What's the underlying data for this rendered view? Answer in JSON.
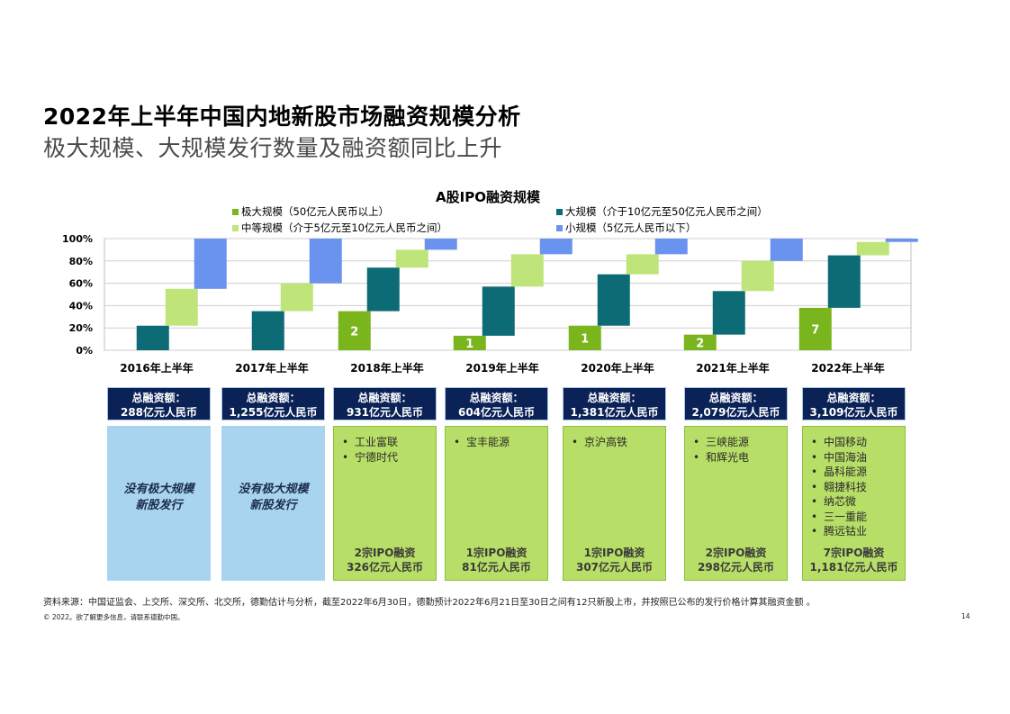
{
  "title": "2022年上半年中国内地新股市场融资规模分析",
  "subtitle": "极大规模、大规模发行数量及融资额同比上升",
  "chart_data": {
    "type": "waterfall-stacked-bar",
    "title": "A股IPO融资规模",
    "categories": [
      "2016年上半年",
      "2017年上半年",
      "2018年上半年",
      "2019年上半年",
      "2020年上半年",
      "2021年上半年",
      "2022年上半年"
    ],
    "y_ticks": [
      "0%",
      "20%",
      "40%",
      "60%",
      "80%",
      "100%"
    ],
    "ylim": [
      0,
      100
    ],
    "series": [
      {
        "name": "极大规模（50亿元人民币以上）",
        "color": "#7ab51d",
        "values": [
          0,
          0,
          35,
          13,
          22,
          14,
          38
        ],
        "labels": [
          "",
          "",
          "2",
          "1",
          "1",
          "2",
          "7"
        ]
      },
      {
        "name": "大规模（介于10亿元至50亿元人民币之间）",
        "color": "#0d6b75",
        "values": [
          22,
          35,
          39,
          44,
          46,
          39,
          47
        ],
        "labels": [
          "",
          "",
          "",
          "",
          "",
          "",
          ""
        ]
      },
      {
        "name": "中等规模（介于5亿元至10亿元人民币之间）",
        "color": "#bfe57a",
        "values": [
          33,
          25,
          16,
          29,
          18,
          27,
          12
        ],
        "labels": [
          "",
          "",
          "",
          "",
          "",
          "",
          ""
        ]
      },
      {
        "name": "小规模（5亿元人民币以下）",
        "color": "#6a93f0",
        "values": [
          45,
          40,
          10,
          14,
          14,
          20,
          3
        ],
        "labels": [
          "",
          "",
          "",
          "",
          "",
          "",
          ""
        ]
      }
    ]
  },
  "cards": [
    {
      "head_label": "总融资额：",
      "head_amount": "288亿元人民币",
      "body_type": "none",
      "none_line1": "没有极大规模",
      "none_line2": "新股发行"
    },
    {
      "head_label": "总融资额：",
      "head_amount": "1,255亿元人民币",
      "body_type": "none",
      "none_line1": "没有极大规模",
      "none_line2": "新股发行"
    },
    {
      "head_label": "总融资额：",
      "head_amount": "931亿元人民币",
      "body_type": "list",
      "companies": [
        "工业富联",
        "宁德时代"
      ],
      "summary_count": "2宗IPO融资",
      "summary_amount": "326亿元人民币"
    },
    {
      "head_label": "总融资额：",
      "head_amount": "604亿元人民币",
      "body_type": "list",
      "companies": [
        "宝丰能源"
      ],
      "summary_count": "1宗IPO融资",
      "summary_amount": "81亿元人民币"
    },
    {
      "head_label": "总融资额：",
      "head_amount": "1,381亿元人民币",
      "body_type": "list",
      "companies": [
        "京沪高铁"
      ],
      "summary_count": "1宗IPO融资",
      "summary_amount": "307亿元人民币"
    },
    {
      "head_label": "总融资额：",
      "head_amount": "2,079亿元人民币",
      "body_type": "list",
      "companies": [
        "三峡能源",
        "和辉光电"
      ],
      "summary_count": "2宗IPO融资",
      "summary_amount": "298亿元人民币"
    },
    {
      "head_label": "总融资额：",
      "head_amount": "3,109亿元人民币",
      "body_type": "list",
      "companies": [
        "中国移动",
        "中国海油",
        "晶科能源",
        "翱捷科技",
        "纳芯微",
        "三一重能",
        "腾远钴业"
      ],
      "summary_count": "7宗IPO融资",
      "summary_amount": "1,181亿元人民币"
    }
  ],
  "footer": {
    "source": "资料来源：中国证监会、上交所、深交所、北交所，德勤估计与分析，截至2022年6月30日，德勤预计2022年6月21日至30日之间有12只新股上市，并按照已公布的发行价格计算其融资金额 。",
    "copyright": "© 2022。欲了解更多信息，请联系德勤中国。",
    "page_number": "14"
  },
  "colors": {
    "card_head_bg": "#0b2256",
    "card_blue_bg": "#a9d4ef",
    "card_green_bg": "#b7de67"
  }
}
